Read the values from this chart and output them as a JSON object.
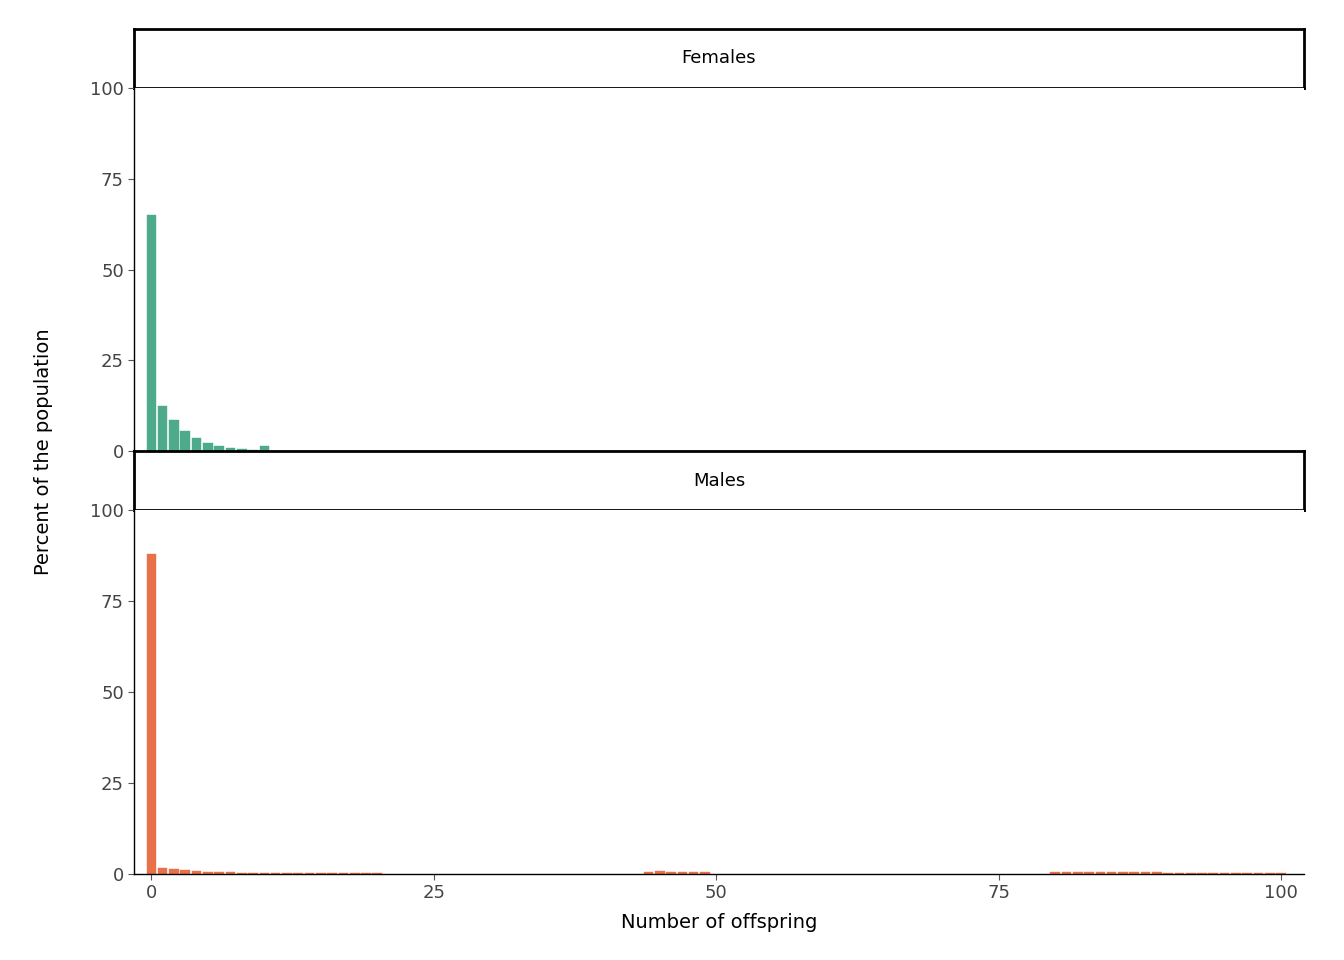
{
  "female_offspring": [
    0,
    1,
    2,
    3,
    4,
    5,
    6,
    7,
    8,
    9,
    10
  ],
  "female_percent": [
    65.0,
    12.5,
    8.5,
    5.5,
    3.5,
    2.2,
    1.5,
    0.8,
    0.5,
    0.4,
    1.5
  ],
  "male_bins": [
    0,
    1,
    2,
    3,
    4,
    5,
    6,
    7,
    8,
    9,
    10,
    11,
    12,
    13,
    14,
    15,
    16,
    17,
    18,
    19,
    20,
    44,
    45,
    46,
    47,
    48,
    49,
    80,
    81,
    82,
    83,
    84,
    85,
    86,
    87,
    88,
    89,
    90,
    91,
    92,
    93,
    94,
    95,
    96,
    97,
    98,
    99,
    100
  ],
  "male_percent": [
    88.0,
    1.5,
    1.2,
    0.9,
    0.7,
    0.5,
    0.4,
    0.35,
    0.3,
    0.25,
    0.2,
    0.18,
    0.15,
    0.12,
    0.1,
    0.09,
    0.08,
    0.07,
    0.06,
    0.05,
    0.04,
    0.5,
    0.6,
    0.55,
    0.5,
    0.45,
    0.4,
    0.5,
    0.55,
    0.5,
    0.48,
    0.45,
    0.42,
    0.4,
    0.38,
    0.35,
    0.32,
    0.3,
    0.28,
    0.25,
    0.22,
    0.2,
    0.18,
    0.16,
    0.14,
    0.12,
    0.1,
    0.08
  ],
  "female_color": "#4dab8b",
  "male_color": "#e8714a",
  "female_label": "Females",
  "male_label": "Males",
  "ylabel": "Percent of the population",
  "xlabel": "Number of offspring",
  "xlim": [
    -1.5,
    102
  ],
  "ylim_female": [
    0,
    100
  ],
  "ylim_male": [
    0,
    100
  ],
  "yticks": [
    0,
    25,
    50,
    75,
    100
  ],
  "xticks": [
    0,
    25,
    50,
    75,
    100
  ],
  "strip_facecolor": "#ffffff",
  "strip_edgecolor": "#000000",
  "strip_linewidth": 2.0,
  "spine_color": "#000000",
  "tick_color": "#555555",
  "font_size_label": 14,
  "font_size_tick": 13,
  "font_size_strip": 13,
  "background_color": "#ffffff"
}
